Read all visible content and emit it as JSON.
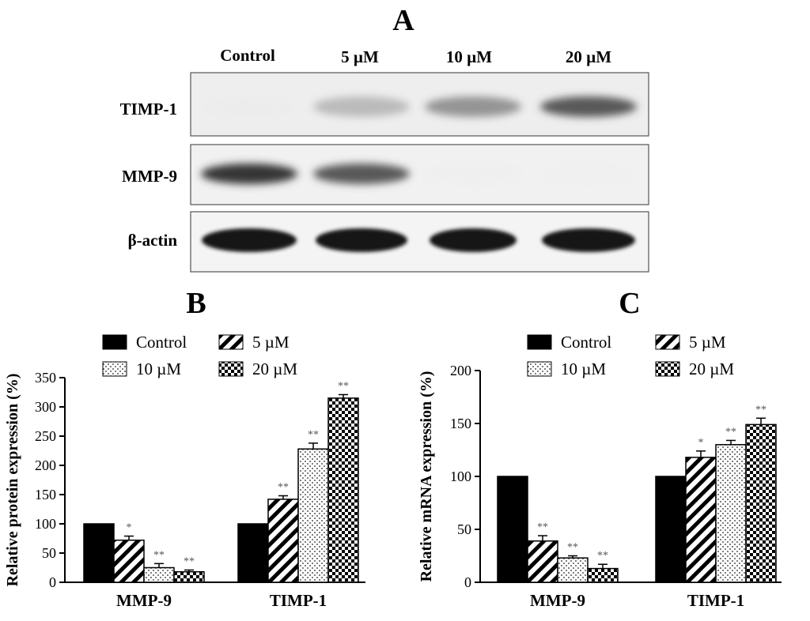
{
  "blot": {
    "panel_label": "A",
    "lanes": [
      "Control",
      "5 µM",
      "10 µM",
      "20 µM"
    ],
    "rows": [
      {
        "label": "TIMP-1",
        "intensity": [
          0.05,
          0.35,
          0.5,
          0.7
        ]
      },
      {
        "label": "MMP-9",
        "intensity": [
          0.85,
          0.7,
          0.04,
          0.03
        ]
      },
      {
        "label": "β-actin",
        "intensity": [
          1.0,
          1.0,
          1.0,
          1.0
        ]
      }
    ]
  },
  "chart_data": [
    {
      "panel_label": "B",
      "type": "bar",
      "categories": [
        "MMP-9",
        "TIMP-1"
      ],
      "series": [
        {
          "name": "Control",
          "pattern": "solid",
          "values": [
            100,
            100
          ],
          "errors": [
            0,
            0
          ],
          "sig": [
            "",
            ""
          ]
        },
        {
          "name": "5 µM",
          "pattern": "diagonal",
          "values": [
            72,
            142
          ],
          "errors": [
            7,
            6
          ],
          "sig": [
            "*",
            "**"
          ]
        },
        {
          "name": "10 µM",
          "pattern": "dots",
          "values": [
            25,
            228
          ],
          "errors": [
            7,
            10
          ],
          "sig": [
            "**",
            "**"
          ]
        },
        {
          "name": "20 µM",
          "pattern": "checker",
          "values": [
            18,
            315
          ],
          "errors": [
            3,
            6
          ],
          "sig": [
            "**",
            "**"
          ]
        }
      ],
      "ylabel": "Relative protein expression (%)",
      "ylim": [
        0,
        350
      ],
      "yticks": [
        0,
        50,
        100,
        150,
        200,
        250,
        300,
        350
      ],
      "legend_position": "top"
    },
    {
      "panel_label": "C",
      "type": "bar",
      "categories": [
        "MMP-9",
        "TIMP-1"
      ],
      "series": [
        {
          "name": "Control",
          "pattern": "solid",
          "values": [
            100,
            100
          ],
          "errors": [
            0,
            0
          ],
          "sig": [
            "",
            ""
          ]
        },
        {
          "name": "5 µM",
          "pattern": "diagonal",
          "values": [
            39,
            118
          ],
          "errors": [
            5,
            6
          ],
          "sig": [
            "**",
            "*"
          ]
        },
        {
          "name": "10 µM",
          "pattern": "dots",
          "values": [
            23,
            130
          ],
          "errors": [
            2,
            4
          ],
          "sig": [
            "**",
            "**"
          ]
        },
        {
          "name": "20 µM",
          "pattern": "checker",
          "values": [
            13,
            149
          ],
          "errors": [
            4,
            6
          ],
          "sig": [
            "**",
            "**"
          ]
        }
      ],
      "ylabel": "Relative mRNA expression (%)",
      "ylim": [
        0,
        200
      ],
      "yticks": [
        0,
        50,
        100,
        150,
        200
      ],
      "legend_position": "top"
    }
  ]
}
